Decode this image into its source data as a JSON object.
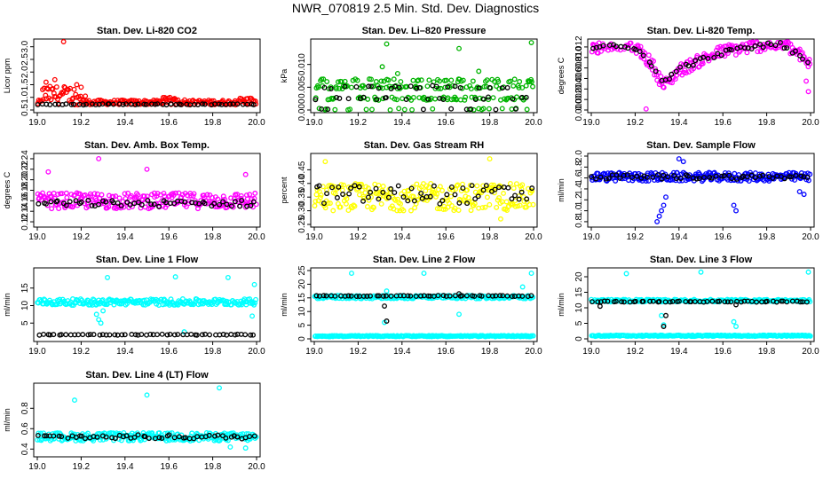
{
  "page": {
    "title": "NWR_070819  2.5 Min. Std. Dev. Diagnostics"
  },
  "colors": {
    "red": "#ff0000",
    "green": "#00b400",
    "magenta": "#ff00ff",
    "yellow": "#ffff00",
    "blue": "#0000ff",
    "cyan": "#00ffff",
    "black": "#000000"
  },
  "chart_data": [
    {
      "type": "scatter",
      "title": "Stan. Dev. Li-820 CO2",
      "ylabel": "Licor ppm",
      "xlabel": "",
      "xlim": [
        19.0,
        20.0
      ],
      "ylim": [
        0.5,
        3.2
      ],
      "xticks": [
        "19.0",
        "19.2",
        "19.4",
        "19.6",
        "19.8",
        "20.0"
      ],
      "yticks": [
        "0.5",
        "1.0",
        "1.5",
        "2.0",
        "2.5",
        "3.0"
      ],
      "series": [
        {
          "name": "main",
          "color": "red",
          "base": 0.8,
          "spread": 0.18,
          "bursts": [
            [
              19.02,
              19.17,
              1.1,
              0.35
            ],
            [
              19.17,
              19.22,
              0.95,
              0.25
            ],
            [
              19.55,
              19.7,
              0.85,
              0.15
            ],
            [
              19.9,
              19.98,
              0.85,
              0.15
            ]
          ],
          "outliers": [
            [
              19.12,
              3.2
            ],
            [
              19.04,
              1.6
            ],
            [
              19.08,
              1.7
            ],
            [
              19.18,
              1.5
            ],
            [
              19.2,
              1.4
            ]
          ]
        },
        {
          "name": "black",
          "color": "black",
          "base": 0.72,
          "spread": 0.04,
          "outliers": []
        }
      ]
    },
    {
      "type": "scatter",
      "title": "Stan. Dev. Li–820 Pressure",
      "ylabel": "kPa",
      "xlabel": "",
      "xlim": [
        19.0,
        20.0
      ],
      "ylim": [
        0.0,
        0.015
      ],
      "xticks": [
        "19.0",
        "19.2",
        "19.4",
        "19.6",
        "19.8",
        "20.0"
      ],
      "yticks": [
        "0.000",
        "0.005",
        "0.010"
      ],
      "series": [
        {
          "name": "main",
          "color": "green",
          "levels": [
            0.0,
            0.0025,
            0.005,
            0.0065
          ],
          "outliers": [
            [
              19.33,
              0.0145
            ],
            [
              19.66,
              0.0135
            ],
            [
              19.99,
              0.0148
            ],
            [
              19.75,
              0.0085
            ],
            [
              19.31,
              0.0095
            ],
            [
              19.38,
              0.008
            ]
          ]
        },
        {
          "name": "black",
          "color": "black",
          "levels": [
            0.0,
            0.0025,
            0.005
          ],
          "outliers": []
        }
      ]
    },
    {
      "type": "scatter",
      "title": "Stan. Dev. Li-820 Temp.",
      "ylabel": "degrees C",
      "xlabel": "",
      "xlim": [
        19.0,
        20.0
      ],
      "ylim": [
        0.0,
        0.013
      ],
      "xticks": [
        "19.0",
        "19.2",
        "19.4",
        "19.6",
        "19.8",
        "20.0"
      ],
      "yticks": [
        "0.000",
        "0.002",
        "0.004",
        "0.006",
        "0.008",
        "0.010",
        "0.012"
      ],
      "series": [
        {
          "name": "main",
          "color": "magenta",
          "curve": [
            [
              19.0,
              0.0115
            ],
            [
              19.1,
              0.0128
            ],
            [
              19.2,
              0.0122
            ],
            [
              19.28,
              0.0085
            ],
            [
              19.33,
              0.0045
            ],
            [
              19.4,
              0.0075
            ],
            [
              19.5,
              0.0095
            ],
            [
              19.6,
              0.0112
            ],
            [
              19.7,
              0.0118
            ],
            [
              19.8,
              0.0125
            ],
            [
              19.88,
              0.0125
            ],
            [
              19.95,
              0.0105
            ],
            [
              20.0,
              0.0085
            ]
          ],
          "spread": 0.0012,
          "outliers": [
            [
              19.25,
              0.0002
            ],
            [
              19.99,
              0.0035
            ],
            [
              19.98,
              0.0055
            ]
          ]
        },
        {
          "name": "black",
          "color": "black",
          "curve": [
            [
              19.0,
              0.0115
            ],
            [
              19.1,
              0.0126
            ],
            [
              19.2,
              0.012
            ],
            [
              19.28,
              0.0085
            ],
            [
              19.33,
              0.0055
            ],
            [
              19.4,
              0.0078
            ],
            [
              19.5,
              0.0095
            ],
            [
              19.6,
              0.011
            ],
            [
              19.7,
              0.0116
            ],
            [
              19.8,
              0.0125
            ],
            [
              19.88,
              0.0123
            ],
            [
              19.95,
              0.0102
            ],
            [
              20.0,
              0.0085
            ]
          ],
          "spread": 0.0005,
          "outliers": []
        }
      ]
    },
    {
      "type": "scatter",
      "title": "Stan. Dev. Amb. Box Temp.",
      "ylabel": "degrees C",
      "xlabel": "",
      "xlim": [
        19.0,
        20.0
      ],
      "ylim": [
        0.115,
        0.245
      ],
      "xticks": [
        "19.0",
        "19.2",
        "19.4",
        "19.6",
        "19.8",
        "20.0"
      ],
      "yticks": [
        "0.12",
        "0.14",
        "0.16",
        "0.18",
        "0.20",
        "0.22",
        "0.24"
      ],
      "series": [
        {
          "name": "main",
          "color": "magenta",
          "base": 0.16,
          "spread": 0.03,
          "outliers": [
            [
              19.28,
              0.24
            ],
            [
              19.5,
              0.22
            ],
            [
              19.05,
              0.215
            ],
            [
              19.95,
              0.21
            ]
          ]
        },
        {
          "name": "black",
          "color": "black",
          "base": 0.155,
          "spread": 0.012,
          "outliers": []
        }
      ]
    },
    {
      "type": "scatter",
      "title": "Stan. Dev. Gas Stream RH",
      "ylabel": "percent",
      "xlabel": "",
      "xlim": [
        19.0,
        20.0
      ],
      "ylim": [
        0.25,
        0.5
      ],
      "xticks": [
        "19.0",
        "19.2",
        "19.4",
        "19.6",
        "19.8",
        "20.0"
      ],
      "yticks": [
        "0.25",
        "0.30",
        "0.35",
        "0.40",
        "0.45"
      ],
      "series": [
        {
          "name": "main",
          "color": "yellow",
          "base": 0.35,
          "spread": 0.1,
          "outliers": [
            [
              19.8,
              0.49
            ],
            [
              19.05,
              0.48
            ],
            [
              19.85,
              0.27
            ]
          ]
        },
        {
          "name": "black",
          "color": "black",
          "base": 0.36,
          "spread": 0.07,
          "outliers": []
        }
      ]
    },
    {
      "type": "scatter",
      "title": "Stan. Dev. Sample Flow",
      "ylabel": "ml/min",
      "xlabel": "",
      "xlim": [
        19.0,
        20.0
      ],
      "ylim": [
        0.75,
        2.0
      ],
      "xticks": [
        "19.0",
        "19.2",
        "19.4",
        "19.6",
        "19.8",
        "20.0"
      ],
      "yticks": [
        "0.8",
        "1.0",
        "1.2",
        "1.4",
        "1.6",
        "1.8",
        "2.0"
      ],
      "series": [
        {
          "name": "main",
          "color": "blue",
          "base": 1.62,
          "spread": 0.16,
          "outliers": [
            [
              19.3,
              0.8
            ],
            [
              19.31,
              0.9
            ],
            [
              19.32,
              1.0
            ],
            [
              19.33,
              1.1
            ],
            [
              19.34,
              1.25
            ],
            [
              19.65,
              1.1
            ],
            [
              19.66,
              1.0
            ],
            [
              19.97,
              1.3
            ],
            [
              19.95,
              1.35
            ],
            [
              19.4,
              1.95
            ],
            [
              19.42,
              1.9
            ]
          ]
        },
        {
          "name": "black",
          "color": "black",
          "base": 1.62,
          "spread": 0.08,
          "outliers": []
        }
      ]
    },
    {
      "type": "scatter",
      "title": "Stan. Dev. Line 1 Flow",
      "ylabel": "ml/min",
      "xlabel": "",
      "xlim": [
        19.0,
        20.0
      ],
      "ylim": [
        0.5,
        20.0
      ],
      "xticks": [
        "19.0",
        "19.2",
        "19.4",
        "19.6",
        "19.8",
        "20.0"
      ],
      "yticks": [
        "5",
        "10",
        "15"
      ],
      "series": [
        {
          "name": "main",
          "color": "cyan",
          "base": 11.0,
          "spread": 1.8,
          "outliers": [
            [
              19.27,
              7.5
            ],
            [
              19.28,
              6.0
            ],
            [
              19.29,
              5.0
            ],
            [
              19.3,
              8.5
            ],
            [
              19.67,
              2.5
            ],
            [
              19.99,
              16.0
            ],
            [
              19.98,
              7.0
            ],
            [
              19.32,
              18.0
            ],
            [
              19.63,
              18.2
            ],
            [
              19.87,
              18.0
            ]
          ]
        },
        {
          "name": "black",
          "color": "black",
          "base": 1.7,
          "spread": 0.25,
          "outliers": []
        }
      ]
    },
    {
      "type": "scatter",
      "title": "Stan. Dev. Line 2 Flow",
      "ylabel": "ml/min",
      "xlabel": "",
      "xlim": [
        19.0,
        20.0
      ],
      "ylim": [
        0.0,
        25.0
      ],
      "xticks": [
        "19.0",
        "19.2",
        "19.4",
        "19.6",
        "19.8",
        "20.0"
      ],
      "yticks": [
        "0",
        "5",
        "10",
        "15",
        "20",
        "25"
      ],
      "series": [
        {
          "name": "main",
          "color": "cyan",
          "base": 15.3,
          "spread": 1.2,
          "low": 1.0,
          "outliers": [
            [
              19.17,
              24.0
            ],
            [
              19.33,
              17.5
            ],
            [
              19.32,
              6.0
            ],
            [
              19.66,
              9.0
            ],
            [
              19.95,
              19.0
            ],
            [
              19.5,
              24.0
            ],
            [
              19.99,
              24.0
            ]
          ]
        },
        {
          "name": "black",
          "color": "black",
          "base": 15.7,
          "spread": 0.3,
          "outliers": [
            [
              19.32,
              12.0
            ],
            [
              19.33,
              6.5
            ],
            [
              19.66,
              16.5
            ]
          ]
        }
      ]
    },
    {
      "type": "scatter",
      "title": "Stan. Dev. Line 3 Flow",
      "ylabel": "ml/min",
      "xlabel": "",
      "xlim": [
        19.0,
        20.0
      ],
      "ylim": [
        0.0,
        22.0
      ],
      "xticks": [
        "19.0",
        "19.2",
        "19.4",
        "19.6",
        "19.8",
        "20.0"
      ],
      "yticks": [
        "0",
        "5",
        "10",
        "15",
        "20"
      ],
      "series": [
        {
          "name": "main",
          "color": "cyan",
          "base": 12.3,
          "spread": 0.8,
          "low": 1.0,
          "outliers": [
            [
              19.16,
              21.0
            ],
            [
              19.5,
              21.5
            ],
            [
              19.99,
              21.5
            ],
            [
              19.65,
              5.5
            ],
            [
              19.66,
              4.0
            ],
            [
              19.33,
              4.5
            ],
            [
              19.32,
              7.5
            ]
          ]
        },
        {
          "name": "black",
          "color": "black",
          "base": 12.0,
          "spread": 0.3,
          "outliers": [
            [
              19.04,
              10.5
            ],
            [
              19.33,
              4.0
            ],
            [
              19.34,
              7.5
            ],
            [
              19.66,
              11.0
            ]
          ]
        }
      ]
    },
    {
      "type": "scatter",
      "title": "Stan. Dev. Line 4 (LT) Flow",
      "ylabel": "ml/min",
      "xlabel": "",
      "xlim": [
        19.0,
        20.0
      ],
      "ylim": [
        0.35,
        1.02
      ],
      "xticks": [
        "19.0",
        "19.2",
        "19.4",
        "19.6",
        "19.8",
        "20.0"
      ],
      "yticks": [
        "0.4",
        "0.6",
        "0.8"
      ],
      "series": [
        {
          "name": "main",
          "color": "cyan",
          "base": 0.52,
          "spread": 0.08,
          "outliers": [
            [
              19.17,
              0.88
            ],
            [
              19.5,
              0.93
            ],
            [
              19.83,
              1.0
            ],
            [
              19.88,
              0.42
            ],
            [
              19.95,
              0.41
            ]
          ]
        },
        {
          "name": "black",
          "color": "black",
          "base": 0.52,
          "spread": 0.04,
          "outliers": []
        }
      ]
    }
  ]
}
